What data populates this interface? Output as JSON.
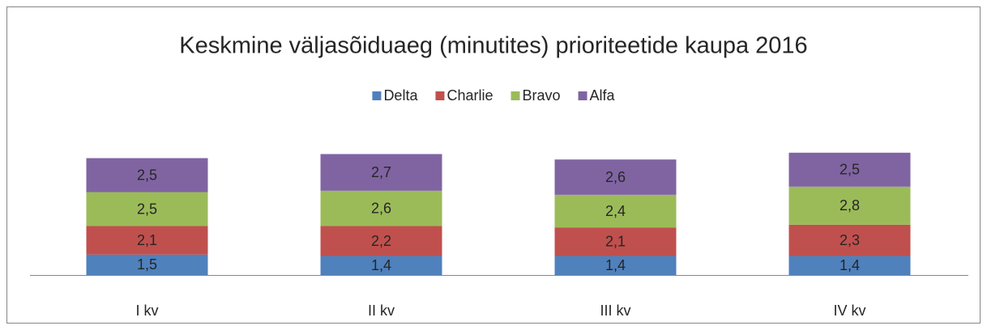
{
  "chart_data": {
    "type": "stacked_bar",
    "title": "Keskmine väljasõiduaeg (minutites) prioriteetide kaupa 2016",
    "categories": [
      "I kv",
      "II kv",
      "III kv",
      "IV kv"
    ],
    "series": [
      {
        "name": "Delta",
        "color": "#4f81bd",
        "values": [
          1.5,
          1.4,
          1.4,
          1.4
        ],
        "value_labels": [
          "1,5",
          "1,4",
          "1,4",
          "1,4"
        ]
      },
      {
        "name": "Charlie",
        "color": "#c0504d",
        "values": [
          2.1,
          2.2,
          2.1,
          2.3
        ],
        "value_labels": [
          "2,1",
          "2,2",
          "2,1",
          "2,3"
        ]
      },
      {
        "name": "Bravo",
        "color": "#9bbb59",
        "values": [
          2.5,
          2.6,
          2.4,
          2.8
        ],
        "value_labels": [
          "2,5",
          "2,6",
          "2,4",
          "2,8"
        ]
      },
      {
        "name": "Alfa",
        "color": "#8064a2",
        "values": [
          2.5,
          2.7,
          2.6,
          2.5
        ],
        "value_labels": [
          "2,5",
          "2,7",
          "2,6",
          "2,5"
        ]
      }
    ],
    "legend": "top"
  }
}
